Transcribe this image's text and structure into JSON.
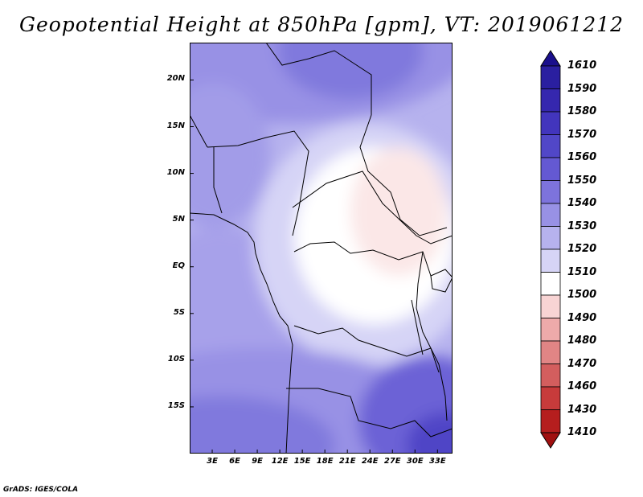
{
  "title": "Geopotential Height at 850hPa [gpm], VT: 2019061212",
  "credit": "GrADS: IGES/COLA",
  "map": {
    "lat_range": [
      -20,
      24
    ],
    "lon_range": [
      0,
      35
    ],
    "y_ticks": [
      {
        "lat": 20,
        "label": "20N"
      },
      {
        "lat": 15,
        "label": "15N"
      },
      {
        "lat": 10,
        "label": "10N"
      },
      {
        "lat": 5,
        "label": "5N"
      },
      {
        "lat": 0,
        "label": "EQ"
      },
      {
        "lat": -5,
        "label": "5S"
      },
      {
        "lat": -10,
        "label": "10S"
      },
      {
        "lat": -15,
        "label": "15S"
      }
    ],
    "x_ticks": [
      {
        "lon": 3,
        "label": "3E"
      },
      {
        "lon": 6,
        "label": "6E"
      },
      {
        "lon": 9,
        "label": "9E"
      },
      {
        "lon": 12,
        "label": "12E"
      },
      {
        "lon": 15,
        "label": "15E"
      },
      {
        "lon": 18,
        "label": "18E"
      },
      {
        "lon": 21,
        "label": "21E"
      },
      {
        "lon": 24,
        "label": "24E"
      },
      {
        "lon": 27,
        "label": "27E"
      },
      {
        "lon": 30,
        "label": "30E"
      },
      {
        "lon": 33,
        "label": "33E"
      }
    ]
  },
  "colorbar": {
    "labels": [
      "1610",
      "1590",
      "1580",
      "1570",
      "1560",
      "1550",
      "1540",
      "1530",
      "1520",
      "1510",
      "1500",
      "1490",
      "1480",
      "1470",
      "1460",
      "1430",
      "1410"
    ],
    "colors": [
      "#1a0f8c",
      "#2a1fa0",
      "#3527ae",
      "#4235bd",
      "#5147c8",
      "#6459d2",
      "#7d73dc",
      "#9891e5",
      "#b6b2ee",
      "#d6d4f6",
      "#ffffff",
      "#f8d4d4",
      "#eeaaaa",
      "#e18585",
      "#d35e5e",
      "#c73b3b",
      "#b51e1e",
      "#a01010"
    ]
  }
}
